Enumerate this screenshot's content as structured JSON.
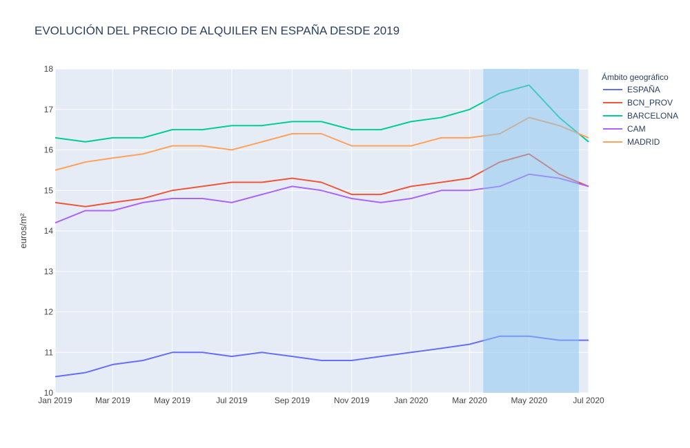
{
  "chart_data": {
    "type": "line",
    "title": "EVOLUCIÓN DEL PRECIO DE ALQUILER EN ESPAÑA DESDE 2019",
    "xlabel": "",
    "ylabel": "euros/m²",
    "ylim": [
      10,
      18
    ],
    "yticks": [
      10,
      11,
      12,
      13,
      14,
      15,
      16,
      17,
      18
    ],
    "x": [
      "2019-01",
      "2019-02",
      "2019-03",
      "2019-04",
      "2019-05",
      "2019-06",
      "2019-07",
      "2019-08",
      "2019-09",
      "2019-10",
      "2019-11",
      "2019-12",
      "2020-01",
      "2020-02",
      "2020-03",
      "2020-04",
      "2020-05",
      "2020-06",
      "2020-07"
    ],
    "xtick_positions": [
      "2019-01",
      "2019-03",
      "2019-05",
      "2019-07",
      "2019-09",
      "2019-11",
      "2020-01",
      "2020-03",
      "2020-05",
      "2020-07"
    ],
    "xtick_labels": [
      "Jan 2019",
      "Mar 2019",
      "May 2019",
      "Jul 2019",
      "Sep 2019",
      "Nov 2019",
      "Jan 2020",
      "Mar 2020",
      "May 2020",
      "Jul 2020"
    ],
    "highlight_range": [
      "2020-03-15",
      "2020-06-21"
    ],
    "highlight_color": "#87c3f0",
    "grid": true,
    "legend_title": "Ámbito geográfico",
    "legend_position": "right",
    "series": [
      {
        "name": "ESPAÑA",
        "color": "#636efa",
        "values": [
          10.4,
          10.5,
          10.7,
          10.8,
          11.0,
          11.0,
          10.9,
          11.0,
          10.9,
          10.8,
          10.8,
          10.9,
          11.0,
          11.1,
          11.2,
          11.4,
          11.4,
          11.3,
          11.3
        ]
      },
      {
        "name": "BCN_PROV",
        "color": "#ef553b",
        "values": [
          14.7,
          14.6,
          14.7,
          14.8,
          15.0,
          15.1,
          15.2,
          15.2,
          15.3,
          15.2,
          14.9,
          14.9,
          15.1,
          15.2,
          15.3,
          15.7,
          15.9,
          15.4,
          15.1
        ]
      },
      {
        "name": "BARCELONA",
        "color": "#00cc96",
        "values": [
          16.3,
          16.2,
          16.3,
          16.3,
          16.5,
          16.5,
          16.6,
          16.6,
          16.7,
          16.7,
          16.5,
          16.5,
          16.7,
          16.8,
          17.0,
          17.4,
          17.6,
          16.8,
          16.2
        ]
      },
      {
        "name": "CAM",
        "color": "#ab63fa",
        "values": [
          14.2,
          14.5,
          14.5,
          14.7,
          14.8,
          14.8,
          14.7,
          14.9,
          15.1,
          15.0,
          14.8,
          14.7,
          14.8,
          15.0,
          15.0,
          15.1,
          15.4,
          15.3,
          15.1
        ]
      },
      {
        "name": "MADRID",
        "color": "#ffa15a",
        "values": [
          15.5,
          15.7,
          15.8,
          15.9,
          16.1,
          16.1,
          16.0,
          16.2,
          16.4,
          16.4,
          16.1,
          16.1,
          16.1,
          16.3,
          16.3,
          16.4,
          16.8,
          16.6,
          16.3
        ]
      }
    ]
  }
}
